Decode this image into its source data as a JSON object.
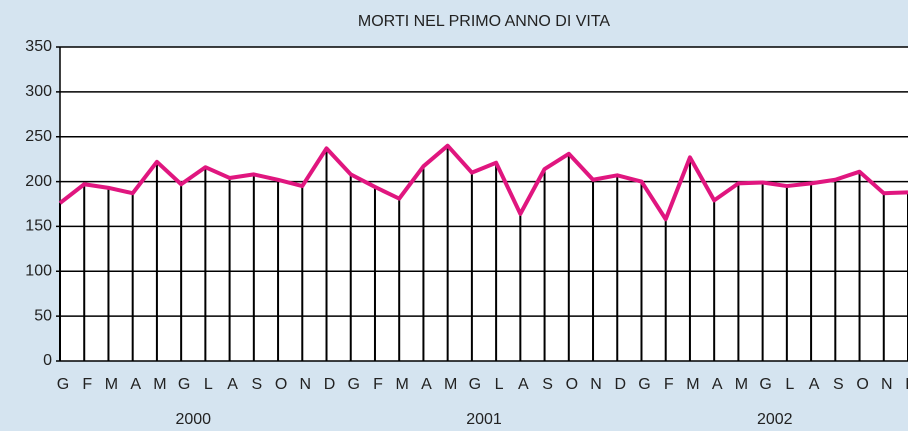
{
  "chart_data": {
    "type": "line",
    "title": "MORTI NEL PRIMO ANNO DI VITA",
    "categories": [
      "G",
      "F",
      "M",
      "A",
      "M",
      "G",
      "L",
      "A",
      "S",
      "O",
      "N",
      "D",
      "G",
      "F",
      "M",
      "A",
      "M",
      "G",
      "L",
      "A",
      "S",
      "O",
      "N",
      "D",
      "G",
      "F",
      "M",
      "A",
      "M",
      "G",
      "L",
      "A",
      "S",
      "O",
      "N",
      "D"
    ],
    "years": [
      "2000",
      "2001",
      "2002"
    ],
    "series": [
      {
        "color": "#e0167f",
        "values": [
          176,
          197,
          193,
          187,
          222,
          197,
          216,
          204,
          208,
          202,
          195,
          237,
          208,
          194,
          181,
          217,
          240,
          210,
          221,
          164,
          214,
          231,
          202,
          207,
          200,
          158,
          227,
          179,
          198,
          199,
          195,
          198,
          202,
          211,
          187,
          188
        ]
      }
    ],
    "ylim": [
      0,
      350
    ],
    "yticks": [
      0,
      50,
      100,
      150,
      200,
      250,
      300,
      350
    ],
    "grid": true,
    "drop_lines": true
  }
}
